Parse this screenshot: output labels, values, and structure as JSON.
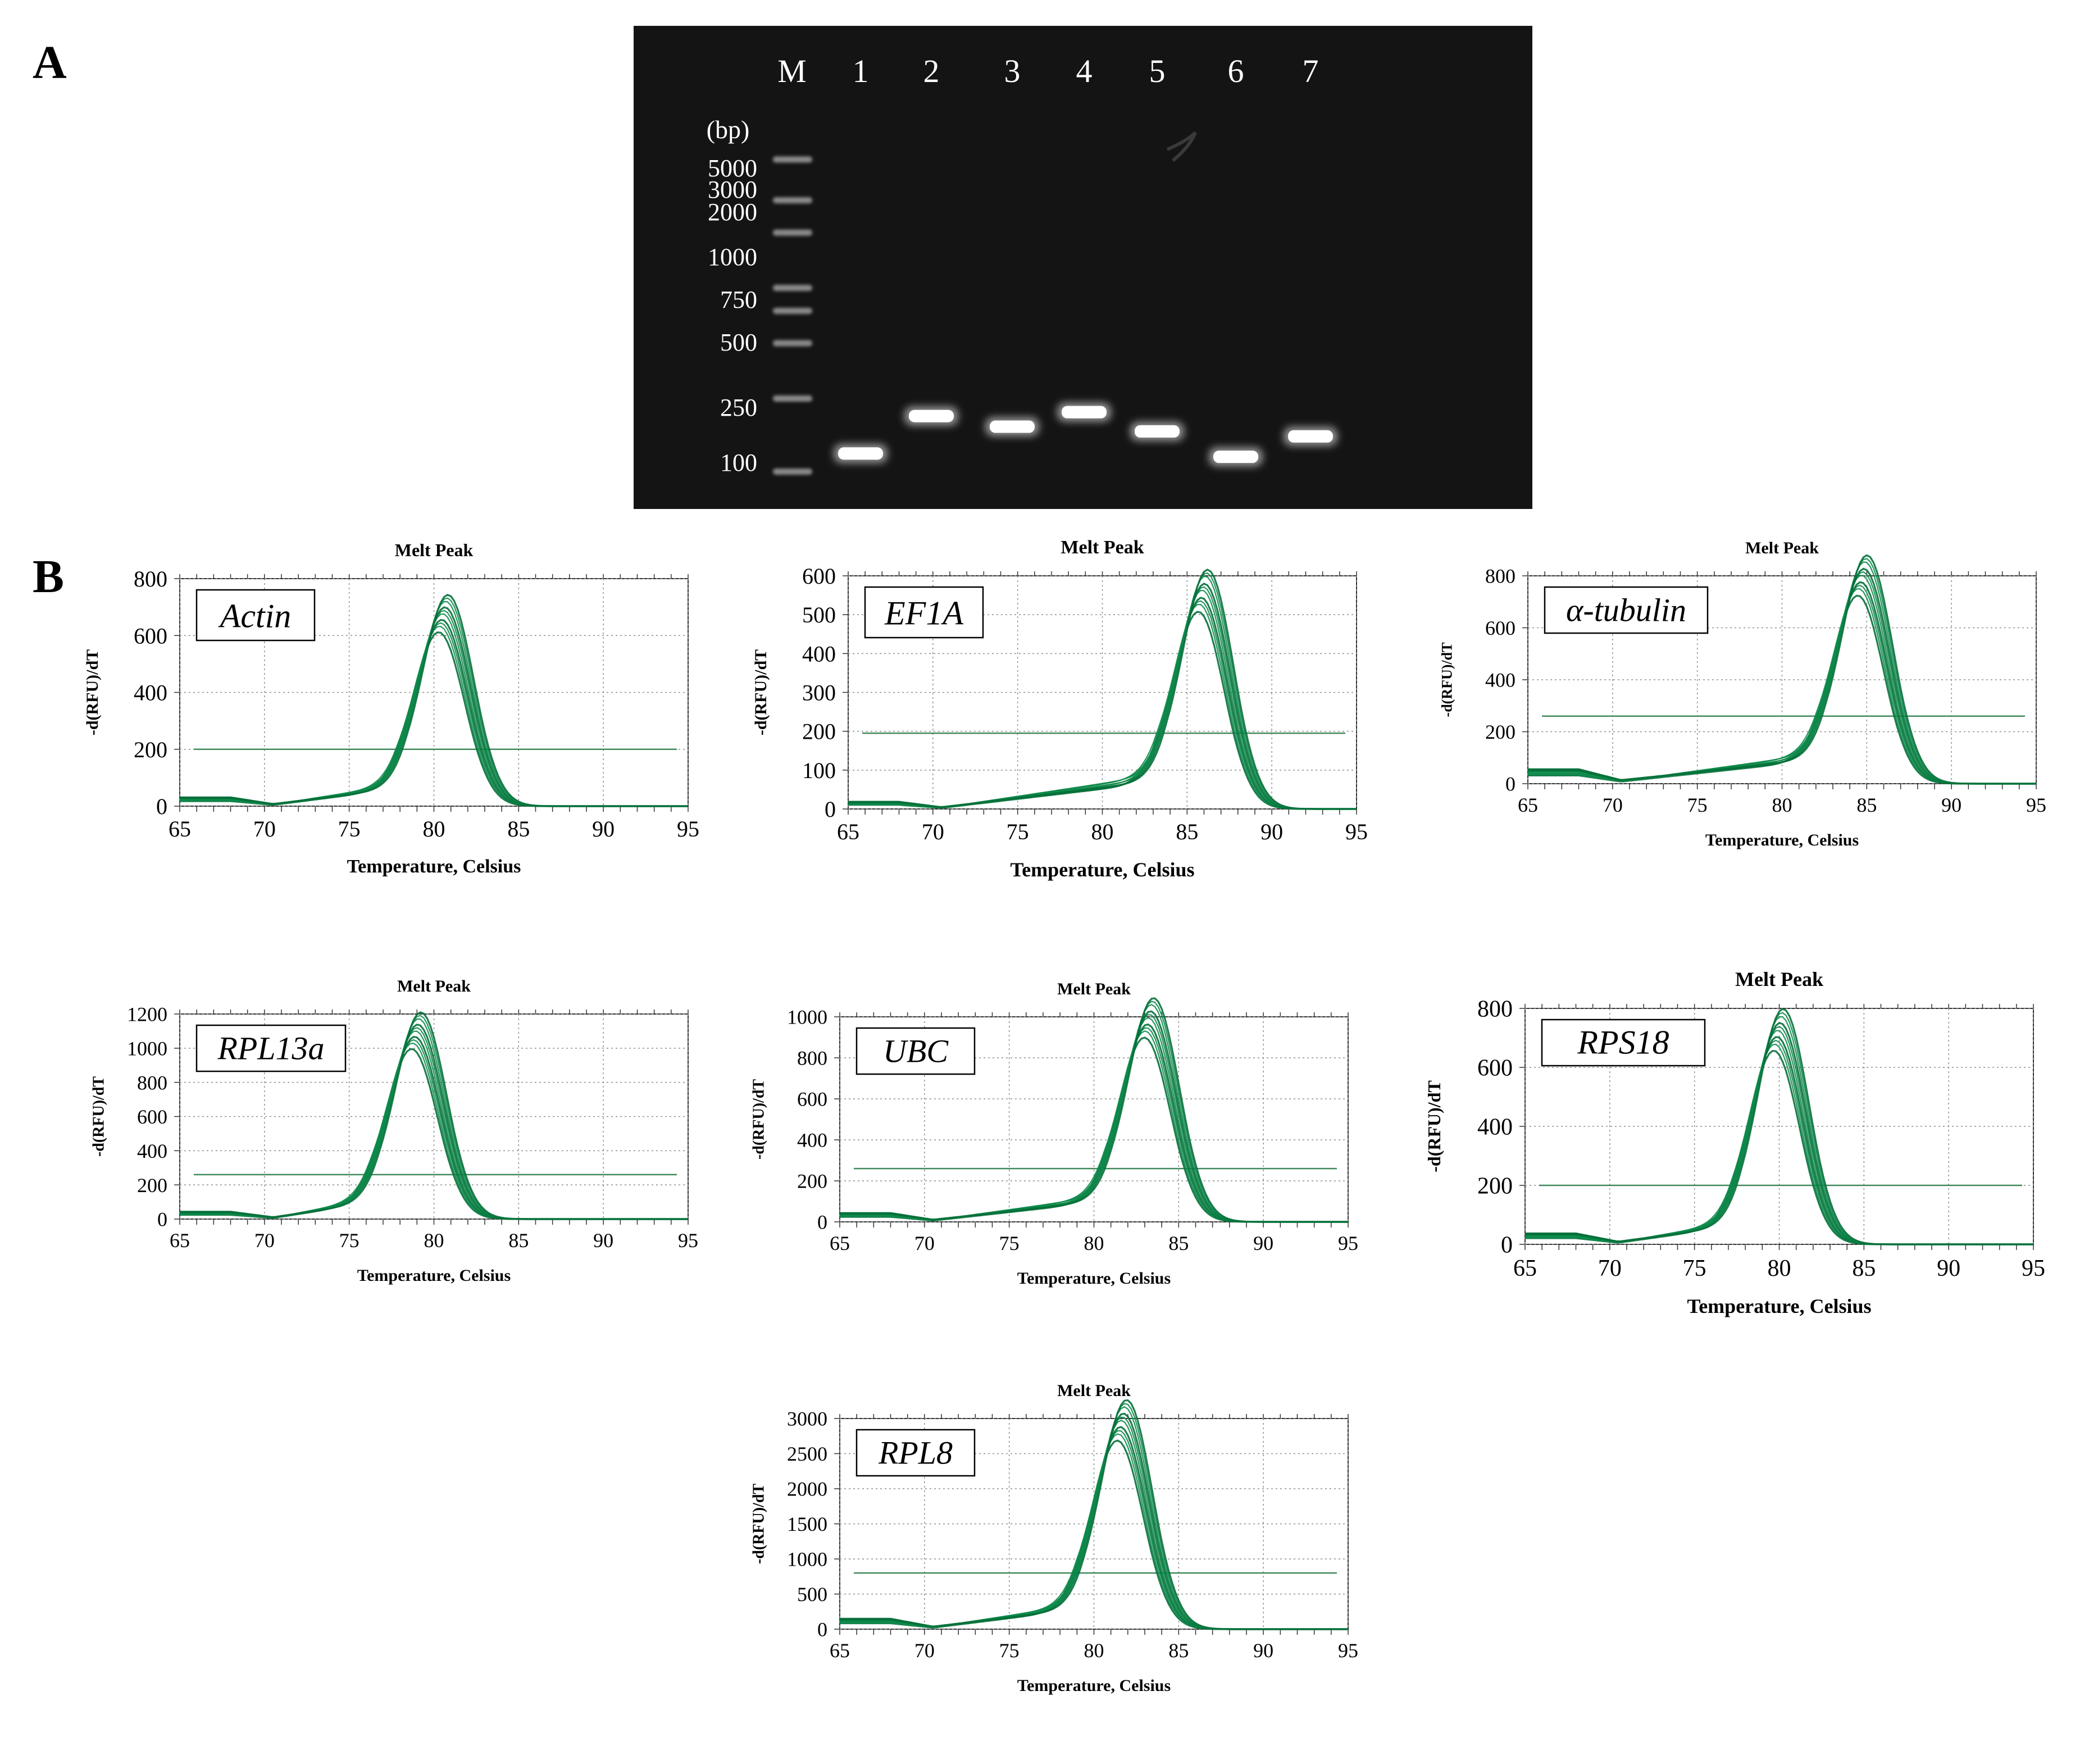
{
  "panels": {
    "a_label": "A",
    "b_label": "B"
  },
  "gel": {
    "lane_labels": [
      "M",
      "1",
      "2",
      "3",
      "4",
      "5",
      "6",
      "7"
    ],
    "bp_unit": "(bp)",
    "ladder_sizes": [
      "5000",
      "3000",
      "2000",
      "1000",
      "750",
      "500",
      "250",
      "100"
    ],
    "ladder_values": [
      5000,
      3000,
      2000,
      1000,
      750,
      500,
      250,
      100
    ],
    "band_sizes_bp": [
      125,
      200,
      175,
      210,
      165,
      120,
      155
    ],
    "colors": {
      "background": "#141414",
      "band": "#ffffff",
      "text": "#ffffff"
    }
  },
  "chart_data": [
    {
      "type": "line",
      "gene": "Actin",
      "title": "Melt Peak",
      "xlabel": "Temperature, Celsius",
      "ylabel": "-d(RFU)/dT",
      "xlim": [
        65,
        95
      ],
      "ylim": [
        0,
        800
      ],
      "x_ticks": [
        "65",
        "70",
        "75",
        "80",
        "85",
        "90",
        "95"
      ],
      "y_ticks": [
        "0",
        "200",
        "400",
        "600",
        "800"
      ],
      "threshold": 200,
      "peak_temp": 80.6,
      "peak_value": 650,
      "shoulder": 70,
      "base_start": 25,
      "replicate_count": 10
    },
    {
      "type": "line",
      "gene": "EF1A",
      "title": "Melt Peak",
      "xlabel": "Temperature, Celsius",
      "ylabel": "-d(RFU)/dT",
      "xlim": [
        65,
        95
      ],
      "ylim": [
        0,
        600
      ],
      "x_ticks": [
        "65",
        "70",
        "75",
        "80",
        "85",
        "90",
        "95"
      ],
      "y_ticks": [
        "0",
        "100",
        "200",
        "300",
        "400",
        "500",
        "600"
      ],
      "threshold": 195,
      "peak_temp": 86,
      "peak_value": 530,
      "shoulder": 80,
      "base_start": 15,
      "replicate_count": 10
    },
    {
      "type": "line",
      "gene": "α-tubulin",
      "title": "Melt Peak",
      "xlabel": "Temperature, Celsius",
      "ylabel": "-d(RFU)/dT",
      "xlim": [
        65,
        95
      ],
      "ylim": [
        0,
        800
      ],
      "x_ticks": [
        "65",
        "70",
        "75",
        "80",
        "85",
        "90",
        "95"
      ],
      "y_ticks": [
        "0",
        "200",
        "400",
        "600",
        "800"
      ],
      "threshold": 260,
      "peak_temp": 84.8,
      "peak_value": 760,
      "shoulder": 105,
      "base_start": 45,
      "replicate_count": 10
    },
    {
      "type": "line",
      "gene": "RPL13a",
      "title": "Melt Peak",
      "xlabel": "Temperature, Celsius",
      "ylabel": "-d(RFU)/dT",
      "xlim": [
        65,
        95
      ],
      "ylim": [
        0,
        1200
      ],
      "x_ticks": [
        "65",
        "70",
        "75",
        "80",
        "85",
        "90",
        "95"
      ],
      "y_ticks": [
        "0",
        "200",
        "400",
        "600",
        "800",
        "1000",
        "1200"
      ],
      "threshold": 260,
      "peak_temp": 79,
      "peak_value": 1060,
      "shoulder": 110,
      "base_start": 35,
      "replicate_count": 10
    },
    {
      "type": "line",
      "gene": "UBC",
      "title": "Melt Peak",
      "xlabel": "Temperature, Celsius",
      "ylabel": "-d(RFU)/dT",
      "xlim": [
        65,
        95
      ],
      "ylim": [
        0,
        1000
      ],
      "x_ticks": [
        "65",
        "70",
        "75",
        "80",
        "85",
        "90",
        "95"
      ],
      "y_ticks": [
        "0",
        "200",
        "400",
        "600",
        "800",
        "1000"
      ],
      "threshold": 260,
      "peak_temp": 83.3,
      "peak_value": 950,
      "shoulder": 115,
      "base_start": 35,
      "replicate_count": 10
    },
    {
      "type": "line",
      "gene": "RPS18",
      "title": "Melt Peak",
      "xlabel": "Temperature, Celsius",
      "ylabel": "-d(RFU)/dT",
      "xlim": [
        65,
        95
      ],
      "ylim": [
        0,
        800
      ],
      "x_ticks": [
        "65",
        "70",
        "75",
        "80",
        "85",
        "90",
        "95"
      ],
      "y_ticks": [
        "0",
        "200",
        "400",
        "600",
        "800"
      ],
      "threshold": 200,
      "peak_temp": 80,
      "peak_value": 700,
      "shoulder": 70,
      "base_start": 30,
      "replicate_count": 10
    },
    {
      "type": "line",
      "gene": "RPL8",
      "title": "Melt Peak",
      "xlabel": "Temperature, Celsius",
      "ylabel": "-d(RFU)/dT",
      "xlim": [
        65,
        95
      ],
      "ylim": [
        0,
        3000
      ],
      "x_ticks": [
        "65",
        "70",
        "75",
        "80",
        "85",
        "90",
        "95"
      ],
      "y_ticks": [
        "0",
        "500",
        "1000",
        "1500",
        "2000",
        "2500",
        "3000"
      ],
      "threshold": 800,
      "peak_temp": 81.7,
      "peak_value": 2850,
      "shoulder": 320,
      "base_start": 120,
      "replicate_count": 10
    }
  ],
  "colors": {
    "curve": "#0d8a4a",
    "curve_dark": "#06703a",
    "threshold": "#3f8a5c",
    "grid": "#8c8c8c",
    "axis": "#333333"
  }
}
